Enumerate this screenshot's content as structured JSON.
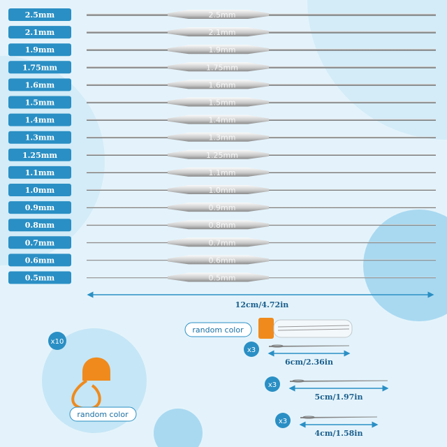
{
  "sizes": [
    "2.5mm",
    "2.1mm",
    "1.9mm",
    "1.75mm",
    "1.6mm",
    "1.5mm",
    "1.4mm",
    "1.3mm",
    "1.25mm",
    "1.1mm",
    "1.0mm",
    "0.9mm",
    "0.8mm",
    "0.7mm",
    "0.6mm",
    "0.5mm"
  ],
  "length_label": "12cm/4.72in",
  "marker": {
    "count": "x10",
    "note": "random color"
  },
  "needles": {
    "note": "random color",
    "items": [
      {
        "count": "x3",
        "length": "6cm/2.36in"
      },
      {
        "count": "x3",
        "length": "5cm/1.97in"
      },
      {
        "count": "x3",
        "length": "4cm/1.58in"
      }
    ]
  }
}
